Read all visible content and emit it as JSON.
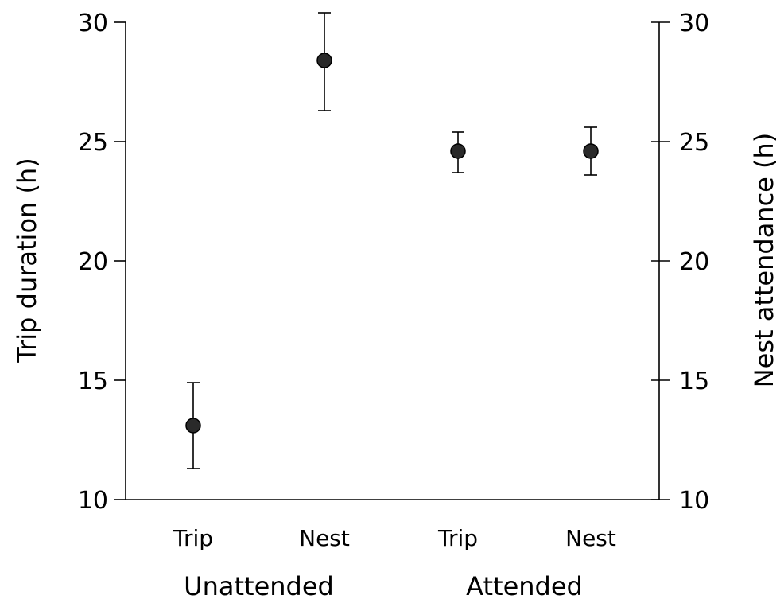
{
  "chart_data": {
    "type": "scatter",
    "categories": [
      "Trip",
      "Nest",
      "Trip",
      "Nest"
    ],
    "groups": [
      {
        "label": "Unattended",
        "categories": [
          0,
          1
        ]
      },
      {
        "label": "Attended",
        "categories": [
          2,
          3
        ]
      }
    ],
    "series": [
      {
        "values": [
          13.1,
          28.4,
          24.6,
          24.6
        ],
        "error_low": [
          11.3,
          26.3,
          23.7,
          23.6
        ],
        "error_high": [
          14.9,
          30.4,
          25.4,
          25.6
        ],
        "marker_color": "#2a2a2a"
      }
    ],
    "ylabel": "Trip duration (h)",
    "ylabel_right": "Nest attendance (h)",
    "ylim": [
      10,
      30
    ],
    "yticks": [
      10,
      15,
      20,
      25,
      30
    ],
    "grid": false,
    "legend": "none"
  }
}
